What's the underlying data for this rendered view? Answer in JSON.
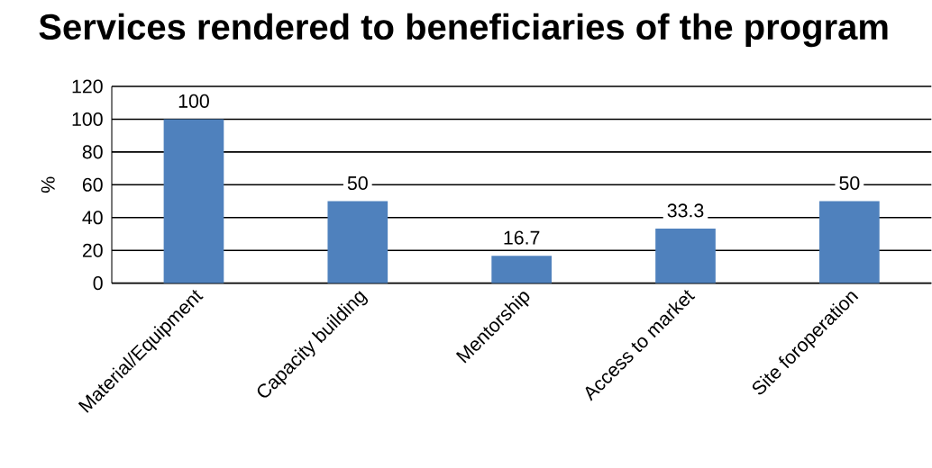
{
  "chart_data": {
    "type": "bar",
    "title": "Services rendered to beneficiaries of  the program",
    "ylabel": "%",
    "categories": [
      "Material/Equipment",
      "Capacity building",
      "Mentorship",
      "Access to market",
      "Site foroperation"
    ],
    "values": [
      100,
      50,
      16.7,
      33.3,
      50
    ],
    "color": "#4f81bd",
    "ylim": [
      0,
      120
    ],
    "yticks": [
      0,
      20,
      40,
      60,
      80,
      100,
      120
    ],
    "grid": "y",
    "data_labels": true
  }
}
